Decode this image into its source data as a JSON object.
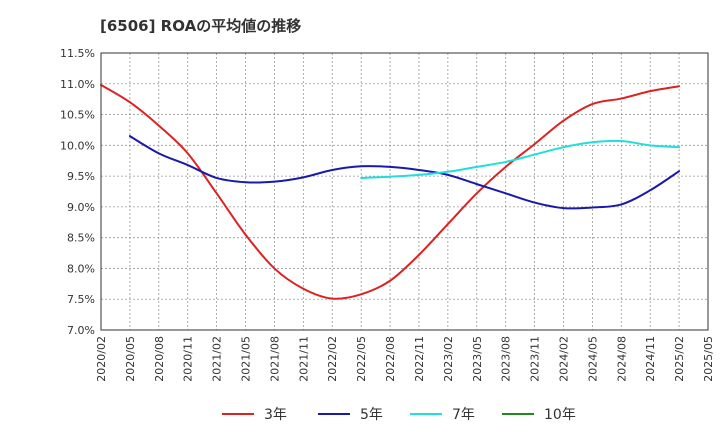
{
  "chart_data": {
    "type": "line",
    "title": "[6506]  ROAの平均値の推移",
    "xlabel": "",
    "ylabel": "",
    "x_tick_labels": [
      "2020/02",
      "2020/05",
      "2020/08",
      "2020/11",
      "2021/02",
      "2021/05",
      "2021/08",
      "2021/11",
      "2022/02",
      "2022/05",
      "2022/08",
      "2022/11",
      "2023/02",
      "2023/05",
      "2023/08",
      "2023/11",
      "2024/02",
      "2024/05",
      "2024/08",
      "2024/11",
      "2025/02",
      "2025/05"
    ],
    "y_tick_labels": [
      "7.0%",
      "7.5%",
      "8.0%",
      "8.5%",
      "9.0%",
      "9.5%",
      "10.0%",
      "10.5%",
      "11.0%",
      "11.5%"
    ],
    "ylim": [
      7.0,
      11.5
    ],
    "grid": true,
    "legend_position": "bottom",
    "series": [
      {
        "name": "3年",
        "color": "#dd2222",
        "x": [
          "2020/02",
          "2020/05",
          "2020/08",
          "2020/11",
          "2021/02",
          "2021/05",
          "2021/08",
          "2021/11",
          "2022/02",
          "2022/05",
          "2022/08",
          "2022/11",
          "2023/02",
          "2023/05",
          "2023/08",
          "2023/11",
          "2024/02",
          "2024/05",
          "2024/08",
          "2024/11",
          "2025/02"
        ],
        "values": [
          10.98,
          10.7,
          10.32,
          9.87,
          9.22,
          8.55,
          8.0,
          7.67,
          7.51,
          7.58,
          7.8,
          8.22,
          8.72,
          9.22,
          9.65,
          10.02,
          10.4,
          10.67,
          10.76,
          10.88,
          10.96
        ]
      },
      {
        "name": "5年",
        "color": "#1a1aaa",
        "x": [
          "2020/05",
          "2020/08",
          "2020/11",
          "2021/02",
          "2021/05",
          "2021/08",
          "2021/11",
          "2022/02",
          "2022/05",
          "2022/08",
          "2022/11",
          "2023/02",
          "2023/05",
          "2023/08",
          "2023/11",
          "2024/02",
          "2024/05",
          "2024/08",
          "2024/11",
          "2025/02"
        ],
        "values": [
          10.15,
          9.87,
          9.68,
          9.47,
          9.4,
          9.41,
          9.48,
          9.6,
          9.66,
          9.65,
          9.6,
          9.52,
          9.37,
          9.22,
          9.07,
          8.98,
          8.99,
          9.04,
          9.27,
          9.58
        ]
      },
      {
        "name": "7年",
        "color": "#22dddd",
        "x": [
          "2022/05",
          "2022/08",
          "2022/11",
          "2023/02",
          "2023/05",
          "2023/08",
          "2023/11",
          "2024/02",
          "2024/05",
          "2024/08",
          "2024/11",
          "2025/02"
        ],
        "values": [
          9.47,
          9.49,
          9.52,
          9.57,
          9.65,
          9.73,
          9.85,
          9.97,
          10.05,
          10.07,
          10.0,
          9.97
        ]
      },
      {
        "name": "10年",
        "color": "#228822",
        "x": [],
        "values": []
      }
    ]
  }
}
